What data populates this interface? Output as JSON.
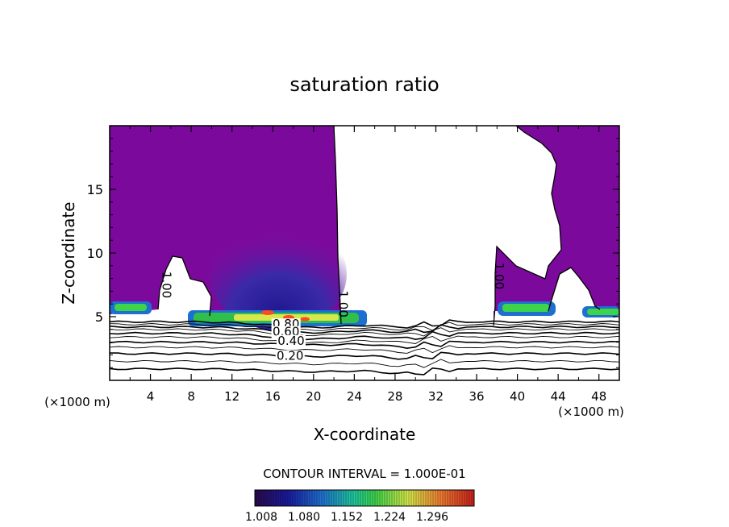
{
  "chart_data": {
    "type": "heatmap",
    "title": "saturation ratio",
    "xlabel": "X-coordinate",
    "ylabel": "Z-coordinate",
    "x_unit_left": "(×1000 m)",
    "x_unit_right": "(×1000 m)",
    "xlim": [
      0,
      50
    ],
    "ylim": [
      0,
      20
    ],
    "xticks": [
      "4",
      "8",
      "12",
      "16",
      "20",
      "24",
      "28",
      "32",
      "36",
      "40",
      "44",
      "48"
    ],
    "xtick_values": [
      4,
      8,
      12,
      16,
      20,
      24,
      28,
      32,
      36,
      40,
      44,
      48
    ],
    "yticks": [
      "5",
      "10",
      "15"
    ],
    "ytick_values": [
      5,
      10,
      15
    ],
    "contour_interval_text": "CONTOUR INTERVAL = 1.000E-01",
    "colorbar_ticks": [
      "1.008",
      "1.080",
      "1.152",
      "1.224",
      "1.296"
    ],
    "contour_labels": [
      {
        "text": "1.00",
        "x": 5.2,
        "z": 7.5
      },
      {
        "text": "1.00",
        "x": 22.5,
        "z": 6.0
      },
      {
        "text": "1.00",
        "x": 37.8,
        "z": 8.2
      },
      {
        "text": "0.80",
        "x": 17.3,
        "z": 4.1
      },
      {
        "text": "0.60",
        "x": 17.3,
        "z": 3.5
      },
      {
        "text": "0.40",
        "x": 17.8,
        "z": 2.8
      },
      {
        "text": "0.20",
        "x": 17.7,
        "z": 1.6
      }
    ],
    "colors": {
      "supersaturated": "#7b0a9c",
      "subsaturated": "#ffffff",
      "low_s": "#3a1f9e",
      "mid_s": "#2fbf4a",
      "high_s": "#ff4a1e"
    }
  }
}
